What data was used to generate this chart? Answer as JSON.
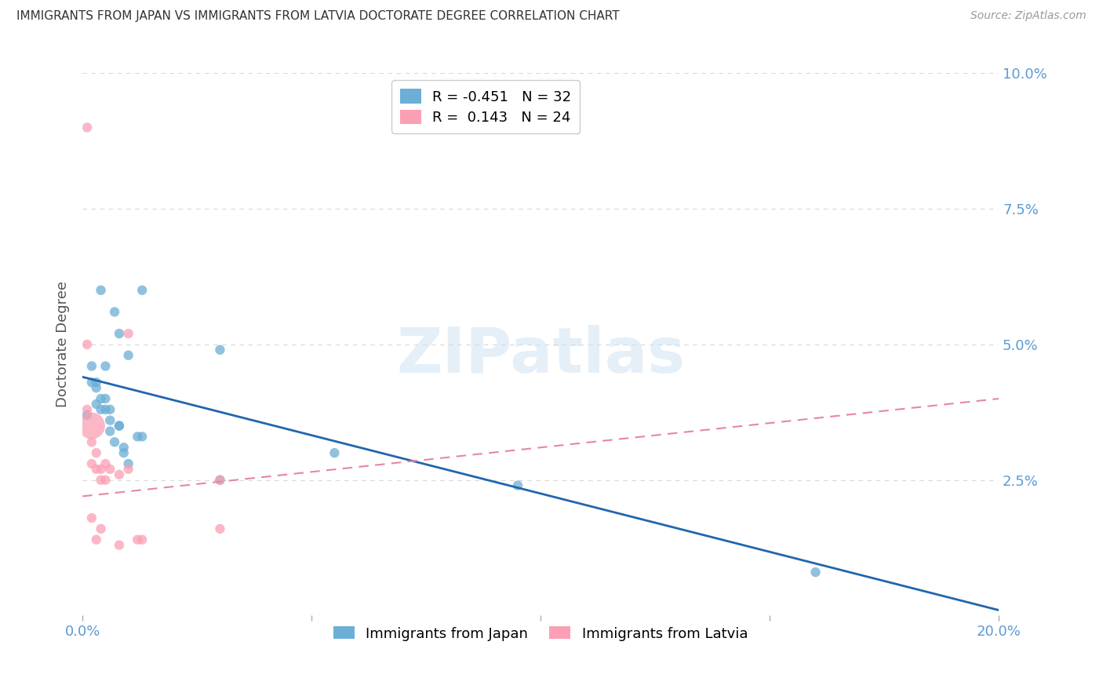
{
  "title": "IMMIGRANTS FROM JAPAN VS IMMIGRANTS FROM LATVIA DOCTORATE DEGREE CORRELATION CHART",
  "source": "Source: ZipAtlas.com",
  "xlabel_japan": "Immigrants from Japan",
  "xlabel_latvia": "Immigrants from Latvia",
  "ylabel": "Doctorate Degree",
  "watermark": "ZIPatlas",
  "xlim": [
    0.0,
    0.2
  ],
  "ylim": [
    0.0,
    0.1
  ],
  "xticks": [
    0.0,
    0.05,
    0.1,
    0.15,
    0.2
  ],
  "yticks": [
    0.0,
    0.025,
    0.05,
    0.075,
    0.1
  ],
  "ytick_labels": [
    "",
    "2.5%",
    "5.0%",
    "7.5%",
    "10.0%"
  ],
  "xtick_labels": [
    "0.0%",
    "",
    "",
    "",
    "20.0%"
  ],
  "japan_R": -0.451,
  "japan_N": 32,
  "latvia_R": 0.143,
  "latvia_N": 24,
  "japan_color": "#6baed6",
  "latvia_color": "#fc9fb5",
  "japan_line_color": "#2166ac",
  "latvia_line_color": "#e8879c",
  "japan_scatter_x": [
    0.001,
    0.002,
    0.002,
    0.003,
    0.003,
    0.003,
    0.004,
    0.004,
    0.004,
    0.005,
    0.005,
    0.005,
    0.006,
    0.006,
    0.006,
    0.007,
    0.007,
    0.008,
    0.008,
    0.008,
    0.009,
    0.009,
    0.01,
    0.01,
    0.012,
    0.013,
    0.013,
    0.03,
    0.03,
    0.055,
    0.095,
    0.16
  ],
  "japan_scatter_y": [
    0.037,
    0.043,
    0.046,
    0.042,
    0.039,
    0.043,
    0.038,
    0.04,
    0.06,
    0.04,
    0.038,
    0.046,
    0.034,
    0.036,
    0.038,
    0.056,
    0.032,
    0.035,
    0.035,
    0.052,
    0.03,
    0.031,
    0.048,
    0.028,
    0.033,
    0.033,
    0.06,
    0.049,
    0.025,
    0.03,
    0.024,
    0.008
  ],
  "japan_scatter_sizes": [
    80,
    80,
    80,
    80,
    80,
    80,
    80,
    80,
    80,
    80,
    80,
    80,
    80,
    80,
    80,
    80,
    80,
    80,
    80,
    80,
    80,
    80,
    80,
    80,
    80,
    80,
    80,
    80,
    80,
    80,
    80,
    80
  ],
  "latvia_scatter_x": [
    0.001,
    0.001,
    0.001,
    0.002,
    0.002,
    0.002,
    0.002,
    0.003,
    0.003,
    0.003,
    0.004,
    0.004,
    0.004,
    0.005,
    0.005,
    0.006,
    0.008,
    0.008,
    0.01,
    0.01,
    0.012,
    0.013,
    0.03,
    0.03
  ],
  "latvia_scatter_y": [
    0.09,
    0.05,
    0.038,
    0.035,
    0.032,
    0.028,
    0.018,
    0.03,
    0.027,
    0.014,
    0.025,
    0.027,
    0.016,
    0.028,
    0.025,
    0.027,
    0.026,
    0.013,
    0.052,
    0.027,
    0.014,
    0.014,
    0.016,
    0.025
  ],
  "latvia_scatter_sizes": [
    80,
    80,
    80,
    600,
    80,
    80,
    80,
    80,
    80,
    80,
    80,
    80,
    80,
    80,
    80,
    80,
    80,
    80,
    80,
    80,
    80,
    80,
    80,
    80
  ],
  "japan_trend_x": [
    0.0,
    0.2
  ],
  "japan_trend_y": [
    0.044,
    0.001
  ],
  "latvia_trend_x": [
    0.0,
    0.2
  ],
  "latvia_trend_y": [
    0.022,
    0.04
  ],
  "background_color": "#ffffff",
  "grid_color": "#d8d8d8",
  "title_color": "#333333",
  "axis_label_color": "#555555",
  "right_axis_label_color": "#5b9bd5"
}
